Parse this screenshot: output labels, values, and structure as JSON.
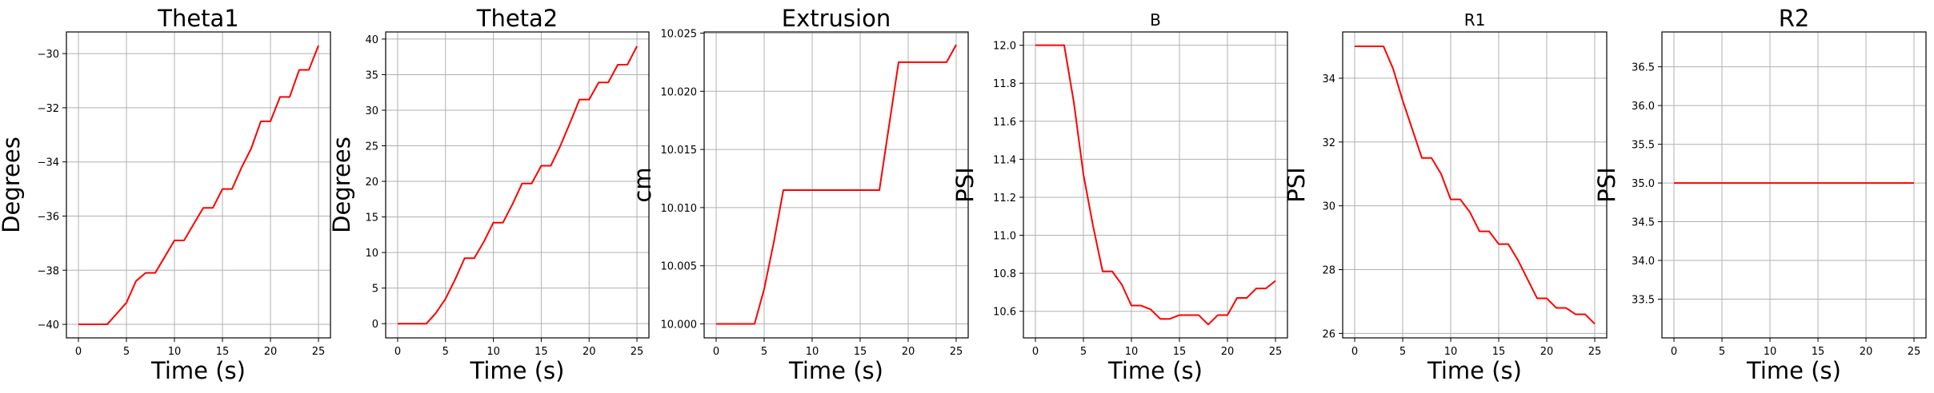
{
  "chart_data": [
    {
      "type": "line",
      "title": "Theta1",
      "xlabel": "Time (s)",
      "ylabel": "Degrees",
      "xlim": [
        -1.25,
        26.25
      ],
      "ylim": [
        -40.5,
        -29.2
      ],
      "xticks": [
        0,
        5,
        10,
        15,
        20,
        25
      ],
      "yticks": [
        -40,
        -38,
        -36,
        -34,
        -32,
        -30
      ],
      "ytick_labels": [
        "−40",
        "−38",
        "−36",
        "−34",
        "−32",
        "−30"
      ],
      "grid": true,
      "series": [
        {
          "color": "#ff0000",
          "x": [
            0,
            1,
            2,
            3,
            4,
            5,
            6,
            7,
            8,
            9,
            10,
            11,
            12,
            13,
            14,
            15,
            16,
            17,
            18,
            19,
            20,
            21,
            22,
            23,
            24,
            25
          ],
          "y": [
            -40,
            -40,
            -40,
            -40,
            -39.6,
            -39.2,
            -38.4,
            -38.1,
            -38.1,
            -37.5,
            -36.9,
            -36.9,
            -36.3,
            -35.7,
            -35.7,
            -35.0,
            -35.0,
            -34.2,
            -33.5,
            -32.5,
            -32.5,
            -31.6,
            -31.6,
            -30.6,
            -30.6,
            -29.7
          ]
        }
      ]
    },
    {
      "type": "line",
      "title": "Theta2",
      "xlabel": "Time (s)",
      "ylabel": "Degrees",
      "xlim": [
        -1.25,
        26.25
      ],
      "ylim": [
        -2.0,
        41.0
      ],
      "xticks": [
        0,
        5,
        10,
        15,
        20,
        25
      ],
      "yticks": [
        0,
        5,
        10,
        15,
        20,
        25,
        30,
        35,
        40
      ],
      "ytick_labels": [
        "0",
        "5",
        "10",
        "15",
        "20",
        "25",
        "30",
        "35",
        "40"
      ],
      "grid": true,
      "series": [
        {
          "color": "#ff0000",
          "x": [
            0,
            1,
            2,
            3,
            4,
            5,
            6,
            7,
            8,
            9,
            10,
            11,
            12,
            13,
            14,
            15,
            16,
            17,
            18,
            19,
            20,
            21,
            22,
            23,
            24,
            25
          ],
          "y": [
            0,
            0,
            0,
            0,
            1.5,
            3.5,
            6.2,
            9.2,
            9.2,
            11.5,
            14.2,
            14.2,
            16.8,
            19.7,
            19.7,
            22.2,
            22.2,
            25.0,
            28.2,
            31.5,
            31.5,
            33.9,
            33.9,
            36.4,
            36.4,
            39.0
          ]
        }
      ]
    },
    {
      "type": "line",
      "title": "Extrusion",
      "xlabel": "Time (s)",
      "ylabel": "cm",
      "xlim": [
        -1.25,
        26.25
      ],
      "ylim": [
        9.9988,
        10.0251
      ],
      "xticks": [
        0,
        5,
        10,
        15,
        20,
        25
      ],
      "yticks": [
        10.0,
        10.005,
        10.01,
        10.015,
        10.02,
        10.025
      ],
      "ytick_labels": [
        "10.000",
        "10.005",
        "10.010",
        "10.015",
        "10.020",
        "10.025"
      ],
      "grid": true,
      "series": [
        {
          "color": "#ff0000",
          "x": [
            0,
            1,
            2,
            3,
            4,
            5,
            6,
            7,
            8,
            9,
            10,
            11,
            12,
            13,
            14,
            15,
            16,
            17,
            18,
            19,
            20,
            21,
            22,
            23,
            24,
            25
          ],
          "y": [
            10.0,
            10.0,
            10.0,
            10.0,
            10.0,
            10.003,
            10.007,
            10.0115,
            10.0115,
            10.0115,
            10.0115,
            10.0115,
            10.0115,
            10.0115,
            10.0115,
            10.0115,
            10.0115,
            10.0115,
            10.017,
            10.0225,
            10.0225,
            10.0225,
            10.0225,
            10.0225,
            10.0225,
            10.024
          ]
        }
      ]
    },
    {
      "type": "line",
      "title": "B",
      "xlabel": "Time (s)",
      "ylabel": "PSI",
      "xlim": [
        -1.25,
        26.25
      ],
      "ylim": [
        10.46,
        12.07
      ],
      "xticks": [
        0,
        5,
        10,
        15,
        20,
        25
      ],
      "yticks": [
        10.6,
        10.8,
        11.0,
        11.2,
        11.4,
        11.6,
        11.8,
        12.0
      ],
      "ytick_labels": [
        "10.6",
        "10.8",
        "11.0",
        "11.2",
        "11.4",
        "11.6",
        "11.8",
        "12.0"
      ],
      "grid": true,
      "series": [
        {
          "color": "#ff0000",
          "x": [
            0,
            1,
            2,
            3,
            4,
            5,
            6,
            7,
            8,
            9,
            10,
            11,
            12,
            13,
            14,
            15,
            16,
            17,
            18,
            19,
            20,
            21,
            22,
            23,
            24,
            25
          ],
          "y": [
            12.0,
            12.0,
            12.0,
            12.0,
            11.7,
            11.32,
            11.05,
            10.81,
            10.81,
            10.74,
            10.63,
            10.63,
            10.61,
            10.56,
            10.56,
            10.58,
            10.58,
            10.58,
            10.53,
            10.58,
            10.58,
            10.67,
            10.67,
            10.72,
            10.72,
            10.76
          ]
        }
      ]
    },
    {
      "type": "line",
      "title": "R1",
      "xlabel": "Time (s)",
      "ylabel": "PSI",
      "xlim": [
        -1.25,
        26.25
      ],
      "ylim": [
        25.86,
        35.45
      ],
      "xticks": [
        0,
        5,
        10,
        15,
        20,
        25
      ],
      "yticks": [
        26,
        28,
        30,
        32,
        34
      ],
      "ytick_labels": [
        "26",
        "28",
        "30",
        "32",
        "34"
      ],
      "grid": true,
      "series": [
        {
          "color": "#ff0000",
          "x": [
            0,
            1,
            2,
            3,
            4,
            5,
            6,
            7,
            8,
            9,
            10,
            11,
            12,
            13,
            14,
            15,
            16,
            17,
            18,
            19,
            20,
            21,
            22,
            23,
            24,
            25
          ],
          "y": [
            35.0,
            35.0,
            35.0,
            35.0,
            34.3,
            33.3,
            32.4,
            31.5,
            31.5,
            31.0,
            30.2,
            30.2,
            29.8,
            29.2,
            29.2,
            28.8,
            28.8,
            28.3,
            27.7,
            27.1,
            27.1,
            26.8,
            26.8,
            26.6,
            26.6,
            26.3
          ]
        }
      ]
    },
    {
      "type": "line",
      "title": "R2",
      "xlabel": "Time (s)",
      "ylabel": "PSI",
      "xlim": [
        -1.25,
        26.25
      ],
      "ylim": [
        33.0,
        36.95
      ],
      "xticks": [
        0,
        5,
        10,
        15,
        20,
        25
      ],
      "yticks": [
        33.5,
        34.0,
        34.5,
        35.0,
        35.5,
        36.0,
        36.5
      ],
      "ytick_labels": [
        "33.5",
        "34.0",
        "34.5",
        "35.0",
        "35.5",
        "36.0",
        "36.5"
      ],
      "grid": true,
      "series": [
        {
          "color": "#ff0000",
          "x": [
            0,
            25
          ],
          "y": [
            35.0,
            35.0
          ]
        }
      ]
    }
  ]
}
